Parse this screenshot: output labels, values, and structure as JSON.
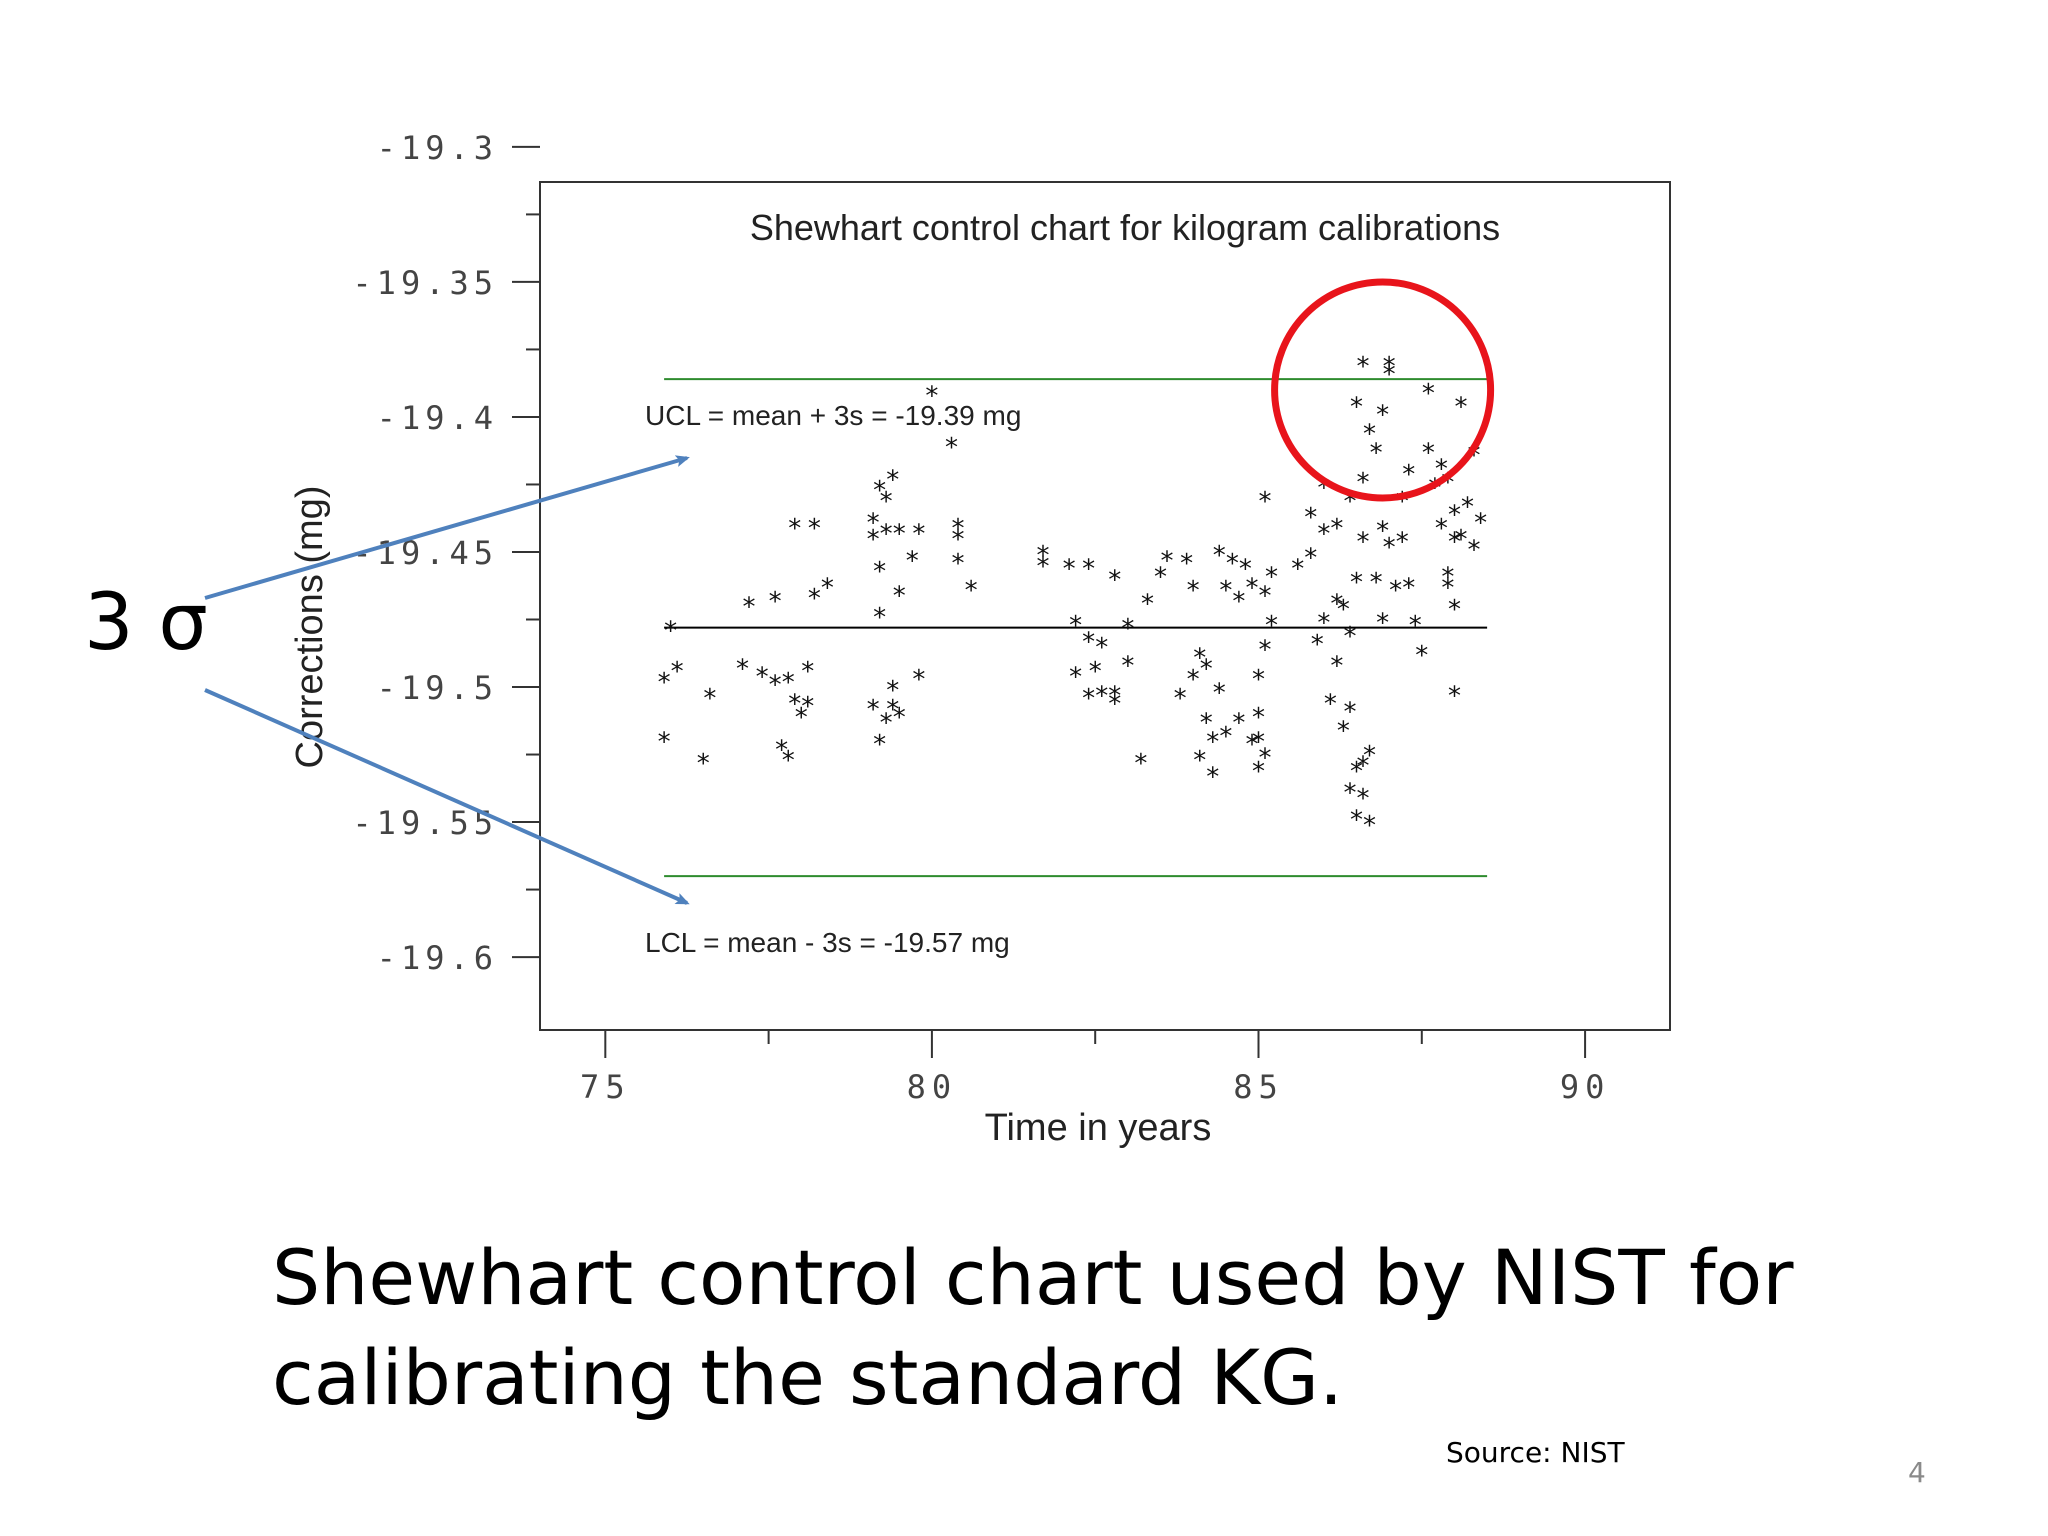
{
  "slide": {
    "caption_line1": "Shewhart control chart used by NIST for",
    "caption_line2": "calibrating the standard KG.",
    "source": "Source: NIST",
    "page_number": "4",
    "sigma_label": "3 σ",
    "arrow_color": "#4f81bd",
    "highlight_circle_color": "#e8141b"
  },
  "chart_data": {
    "type": "scatter",
    "title": "Shewhart control chart for kilogram calibrations",
    "xlabel": "Time in years",
    "ylabel": "Corrections (mg)",
    "xlim": [
      74.0,
      91.3
    ],
    "ylim": [
      -19.627,
      -19.313
    ],
    "x_ticks": [
      75,
      80,
      85,
      90
    ],
    "x_tick_labels": [
      "75",
      "80",
      "85",
      "90"
    ],
    "y_ticks": [
      -19.3,
      -19.35,
      -19.4,
      -19.45,
      -19.5,
      -19.55,
      -19.6
    ],
    "y_tick_labels": [
      "-19.3",
      "-19.35",
      "-19.4",
      "-19.45",
      "-19.5",
      "-19.55",
      "-19.6"
    ],
    "marker": "*",
    "grid": false,
    "reference_lines": [
      {
        "label": "UCL = mean + 3s = -19.39 mg",
        "y": -19.386,
        "color": "#2e8b2e"
      },
      {
        "label": "",
        "y": -19.478,
        "color": "#000000"
      },
      {
        "label": "LCL = mean - 3s = -19.57 mg",
        "y": -19.57,
        "color": "#2e8b2e"
      }
    ],
    "highlight": {
      "x": 86.9,
      "y": -19.39
    },
    "points": [
      [
        76.0,
        -19.478
      ],
      [
        75.9,
        -19.497
      ],
      [
        76.1,
        -19.493
      ],
      [
        75.9,
        -19.519
      ],
      [
        76.5,
        -19.527
      ],
      [
        76.6,
        -19.503
      ],
      [
        77.2,
        -19.469
      ],
      [
        77.6,
        -19.467
      ],
      [
        77.1,
        -19.492
      ],
      [
        77.4,
        -19.495
      ],
      [
        77.6,
        -19.498
      ],
      [
        77.7,
        -19.522
      ],
      [
        77.8,
        -19.526
      ],
      [
        77.8,
        -19.497
      ],
      [
        77.9,
        -19.505
      ],
      [
        78.0,
        -19.51
      ],
      [
        77.9,
        -19.44
      ],
      [
        78.2,
        -19.44
      ],
      [
        78.2,
        -19.466
      ],
      [
        78.4,
        -19.462
      ],
      [
        78.1,
        -19.493
      ],
      [
        78.1,
        -19.506
      ],
      [
        79.1,
        -19.438
      ],
      [
        79.2,
        -19.426
      ],
      [
        79.3,
        -19.43
      ],
      [
        79.3,
        -19.442
      ],
      [
        79.2,
        -19.456
      ],
      [
        79.2,
        -19.473
      ],
      [
        79.5,
        -19.465
      ],
      [
        79.7,
        -19.452
      ],
      [
        79.1,
        -19.507
      ],
      [
        79.3,
        -19.512
      ],
      [
        79.4,
        -19.5
      ],
      [
        79.2,
        -19.52
      ],
      [
        79.4,
        -19.507
      ],
      [
        79.5,
        -19.51
      ],
      [
        79.1,
        -19.444
      ],
      [
        79.5,
        -19.442
      ],
      [
        79.4,
        -19.422
      ],
      [
        79.8,
        -19.442
      ],
      [
        79.8,
        -19.496
      ],
      [
        80.0,
        -19.391
      ],
      [
        80.3,
        -19.41
      ],
      [
        80.4,
        -19.44
      ],
      [
        80.4,
        -19.444
      ],
      [
        80.4,
        -19.453
      ],
      [
        80.6,
        -19.463
      ],
      [
        81.7,
        -19.45
      ],
      [
        81.7,
        -19.454
      ],
      [
        82.1,
        -19.455
      ],
      [
        82.4,
        -19.455
      ],
      [
        82.8,
        -19.459
      ],
      [
        82.2,
        -19.476
      ],
      [
        82.4,
        -19.482
      ],
      [
        82.6,
        -19.484
      ],
      [
        82.2,
        -19.495
      ],
      [
        82.5,
        -19.493
      ],
      [
        82.6,
        -19.502
      ],
      [
        82.4,
        -19.503
      ],
      [
        82.8,
        -19.502
      ],
      [
        82.8,
        -19.505
      ],
      [
        83.0,
        -19.477
      ],
      [
        83.0,
        -19.491
      ],
      [
        83.2,
        -19.527
      ],
      [
        83.3,
        -19.468
      ],
      [
        83.5,
        -19.458
      ],
      [
        83.6,
        -19.452
      ],
      [
        83.9,
        -19.453
      ],
      [
        84.0,
        -19.463
      ],
      [
        84.0,
        -19.496
      ],
      [
        83.8,
        -19.503
      ],
      [
        84.1,
        -19.488
      ],
      [
        84.2,
        -19.492
      ],
      [
        84.2,
        -19.512
      ],
      [
        84.3,
        -19.519
      ],
      [
        84.3,
        -19.532
      ],
      [
        84.1,
        -19.526
      ],
      [
        84.4,
        -19.45
      ],
      [
        84.6,
        -19.453
      ],
      [
        84.8,
        -19.455
      ],
      [
        84.5,
        -19.463
      ],
      [
        84.7,
        -19.467
      ],
      [
        84.9,
        -19.462
      ],
      [
        84.4,
        -19.501
      ],
      [
        84.5,
        -19.517
      ],
      [
        84.7,
        -19.512
      ],
      [
        84.9,
        -19.52
      ],
      [
        85.0,
        -19.519
      ],
      [
        85.1,
        -19.485
      ],
      [
        85.0,
        -19.496
      ],
      [
        85.1,
        -19.465
      ],
      [
        85.2,
        -19.458
      ],
      [
        85.2,
        -19.476
      ],
      [
        85.0,
        -19.53
      ],
      [
        85.1,
        -19.525
      ],
      [
        85.0,
        -19.51
      ],
      [
        85.1,
        -19.43
      ],
      [
        85.8,
        -19.451
      ],
      [
        85.6,
        -19.455
      ],
      [
        85.8,
        -19.436
      ],
      [
        86.0,
        -19.442
      ],
      [
        86.0,
        -19.425
      ],
      [
        86.2,
        -19.44
      ],
      [
        85.9,
        -19.483
      ],
      [
        86.0,
        -19.475
      ],
      [
        86.2,
        -19.468
      ],
      [
        86.3,
        -19.47
      ],
      [
        86.4,
        -19.48
      ],
      [
        86.2,
        -19.491
      ],
      [
        86.1,
        -19.505
      ],
      [
        86.3,
        -19.515
      ],
      [
        86.4,
        -19.508
      ],
      [
        86.5,
        -19.46
      ],
      [
        86.6,
        -19.445
      ],
      [
        86.4,
        -19.43
      ],
      [
        86.6,
        -19.423
      ],
      [
        86.7,
        -19.405
      ],
      [
        86.5,
        -19.395
      ],
      [
        86.8,
        -19.412
      ],
      [
        86.9,
        -19.398
      ],
      [
        87.0,
        -19.383
      ],
      [
        86.9,
        -19.441
      ],
      [
        87.0,
        -19.447
      ],
      [
        87.2,
        -19.445
      ],
      [
        87.2,
        -19.43
      ],
      [
        87.3,
        -19.42
      ],
      [
        86.5,
        -19.53
      ],
      [
        86.6,
        -19.54
      ],
      [
        86.4,
        -19.538
      ],
      [
        86.5,
        -19.548
      ],
      [
        86.6,
        -19.528
      ],
      [
        86.7,
        -19.524
      ],
      [
        86.7,
        -19.55
      ],
      [
        86.8,
        -19.46
      ],
      [
        86.9,
        -19.475
      ],
      [
        87.1,
        -19.463
      ],
      [
        87.3,
        -19.462
      ],
      [
        87.4,
        -19.476
      ],
      [
        87.5,
        -19.487
      ],
      [
        86.6,
        -19.38
      ],
      [
        87.0,
        -19.38
      ],
      [
        87.6,
        -19.39
      ],
      [
        87.6,
        -19.412
      ],
      [
        87.8,
        -19.418
      ],
      [
        87.7,
        -19.425
      ],
      [
        87.9,
        -19.423
      ],
      [
        87.8,
        -19.44
      ],
      [
        88.0,
        -19.435
      ],
      [
        88.2,
        -19.432
      ],
      [
        88.1,
        -19.444
      ],
      [
        87.9,
        -19.458
      ],
      [
        87.9,
        -19.462
      ],
      [
        88.0,
        -19.47
      ],
      [
        88.3,
        -19.448
      ],
      [
        88.4,
        -19.438
      ],
      [
        88.3,
        -19.413
      ],
      [
        88.1,
        -19.395
      ],
      [
        88.0,
        -19.445
      ],
      [
        88.0,
        -19.502
      ]
    ]
  }
}
